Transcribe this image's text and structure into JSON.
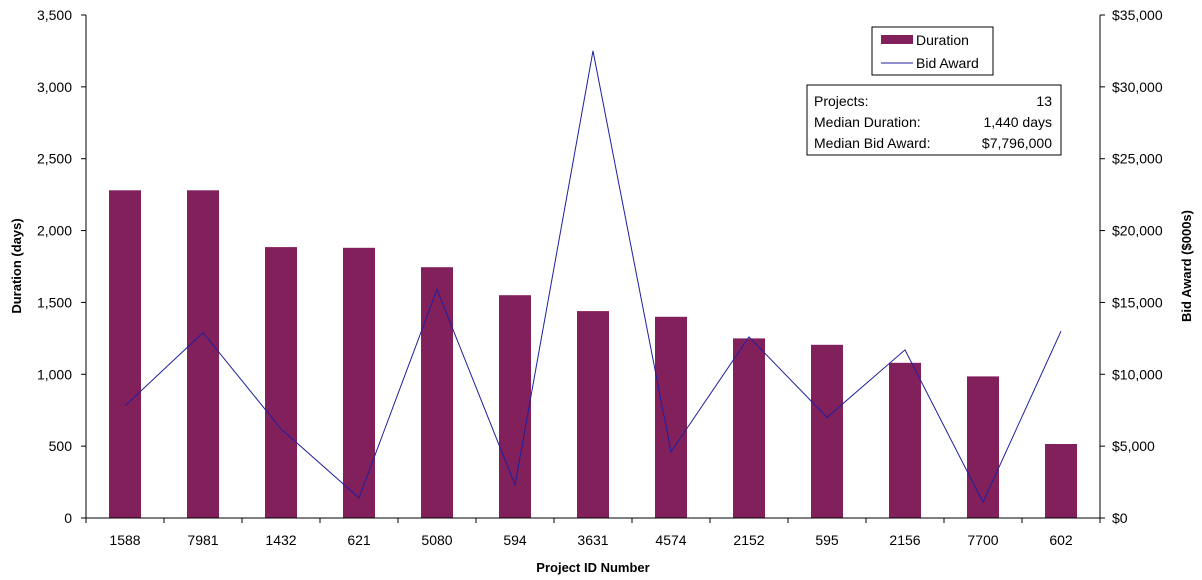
{
  "chart_data": {
    "type": "bar",
    "xlabel": "Project ID Number",
    "ylabel": "Duration (days)",
    "y2label": "Bid Award ($000s)",
    "categories": [
      "1588",
      "7981",
      "1432",
      "621",
      "5080",
      "594",
      "3631",
      "4574",
      "2152",
      "595",
      "2156",
      "7700",
      "602"
    ],
    "series": [
      {
        "name": "Duration",
        "kind": "bar",
        "axis": "left",
        "color": "#82205C",
        "values": [
          2280,
          2280,
          1885,
          1880,
          1745,
          1550,
          1440,
          1400,
          1250,
          1205,
          1080,
          985,
          515
        ]
      },
      {
        "name": "Bid Award",
        "kind": "line",
        "axis": "right",
        "color": "#1F1F9F",
        "values": [
          7800,
          12900,
          6200,
          1400,
          15900,
          2300,
          32500,
          4600,
          12600,
          7000,
          11700,
          1100,
          13000
        ]
      }
    ],
    "ylim": [
      0,
      3500
    ],
    "y2lim": [
      0,
      35000
    ],
    "yticks": [
      "0",
      "500",
      "1,000",
      "1,500",
      "2,000",
      "2,500",
      "3,000",
      "3,500"
    ],
    "y2ticks": [
      "$0",
      "$5,000",
      "$10,000",
      "$15,000",
      "$20,000",
      "$25,000",
      "$30,000",
      "$35,000"
    ],
    "legend_position": "top-right",
    "grid": false,
    "stats_box": [
      {
        "label": "Projects:",
        "value": "13"
      },
      {
        "label": "Median Duration:",
        "value": "1,440 days"
      },
      {
        "label": "Median Bid Award:",
        "value": "$7,796,000"
      }
    ]
  }
}
